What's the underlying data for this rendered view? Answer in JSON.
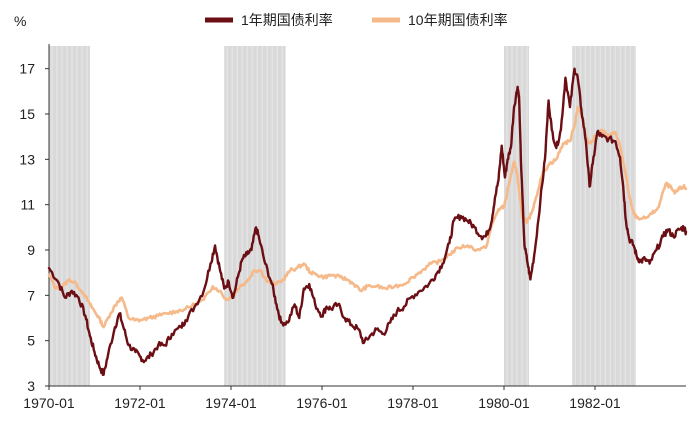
{
  "chart_data": {
    "type": "line",
    "title": "",
    "unit_label": "%",
    "xlabel": "",
    "ylabel": "%",
    "x_range": [
      1970.0,
      1984.0
    ],
    "ylim": [
      3,
      18
    ],
    "y_ticks": [
      3,
      5,
      7,
      9,
      11,
      13,
      15,
      17
    ],
    "x_ticks": [
      {
        "label": "1970-01",
        "value": 1970.0
      },
      {
        "label": "1972-01",
        "value": 1972.0
      },
      {
        "label": "1974-01",
        "value": 1974.0
      },
      {
        "label": "1976-01",
        "value": 1976.0
      },
      {
        "label": "1978-01",
        "value": 1978.0
      },
      {
        "label": "1980-01",
        "value": 1980.0
      },
      {
        "label": "1982-01",
        "value": 1982.0
      }
    ],
    "recession_shading": [
      [
        1970.0,
        1970.9
      ],
      [
        1973.85,
        1975.2
      ],
      [
        1980.0,
        1980.55
      ],
      [
        1981.5,
        1982.9
      ]
    ],
    "legend_position": "top-center",
    "series": [
      {
        "name": "1年期国债利率",
        "color": "#6b0f14",
        "points": [
          [
            1970.0,
            8.2
          ],
          [
            1970.2,
            7.6
          ],
          [
            1970.35,
            6.9
          ],
          [
            1970.5,
            7.2
          ],
          [
            1970.65,
            6.9
          ],
          [
            1970.8,
            6.1
          ],
          [
            1970.9,
            5.2
          ],
          [
            1971.0,
            4.5
          ],
          [
            1971.1,
            3.9
          ],
          [
            1971.2,
            3.5
          ],
          [
            1971.3,
            4.4
          ],
          [
            1971.45,
            5.6
          ],
          [
            1971.55,
            6.2
          ],
          [
            1971.65,
            5.5
          ],
          [
            1971.75,
            4.8
          ],
          [
            1971.9,
            4.5
          ],
          [
            1972.0,
            4.3
          ],
          [
            1972.1,
            4.1
          ],
          [
            1972.25,
            4.4
          ],
          [
            1972.4,
            4.8
          ],
          [
            1972.55,
            4.8
          ],
          [
            1972.7,
            5.3
          ],
          [
            1972.9,
            5.6
          ],
          [
            1973.0,
            5.9
          ],
          [
            1973.2,
            6.5
          ],
          [
            1973.4,
            7.2
          ],
          [
            1973.55,
            8.4
          ],
          [
            1973.65,
            9.2
          ],
          [
            1973.75,
            8.2
          ],
          [
            1973.85,
            7.3
          ],
          [
            1973.95,
            7.6
          ],
          [
            1974.05,
            6.9
          ],
          [
            1974.15,
            7.8
          ],
          [
            1974.25,
            8.6
          ],
          [
            1974.35,
            8.8
          ],
          [
            1974.45,
            9.0
          ],
          [
            1974.55,
            10.0
          ],
          [
            1974.62,
            9.5
          ],
          [
            1974.75,
            8.4
          ],
          [
            1974.9,
            7.5
          ],
          [
            1975.0,
            6.6
          ],
          [
            1975.1,
            5.8
          ],
          [
            1975.25,
            5.8
          ],
          [
            1975.4,
            6.6
          ],
          [
            1975.5,
            6.0
          ],
          [
            1975.6,
            7.3
          ],
          [
            1975.72,
            7.5
          ],
          [
            1975.85,
            6.6
          ],
          [
            1976.0,
            6.1
          ],
          [
            1976.1,
            6.5
          ],
          [
            1976.2,
            6.4
          ],
          [
            1976.35,
            6.6
          ],
          [
            1976.5,
            6.0
          ],
          [
            1976.65,
            5.7
          ],
          [
            1976.8,
            5.5
          ],
          [
            1976.92,
            4.9
          ],
          [
            1977.05,
            5.2
          ],
          [
            1977.2,
            5.5
          ],
          [
            1977.35,
            5.3
          ],
          [
            1977.5,
            5.8
          ],
          [
            1977.65,
            6.3
          ],
          [
            1977.8,
            6.5
          ],
          [
            1977.95,
            6.9
          ],
          [
            1978.15,
            7.2
          ],
          [
            1978.35,
            7.5
          ],
          [
            1978.5,
            7.9
          ],
          [
            1978.65,
            8.4
          ],
          [
            1978.8,
            9.3
          ],
          [
            1978.9,
            10.3
          ],
          [
            1979.05,
            10.5
          ],
          [
            1979.2,
            10.3
          ],
          [
            1979.35,
            10.0
          ],
          [
            1979.5,
            9.6
          ],
          [
            1979.6,
            9.6
          ],
          [
            1979.72,
            10.2
          ],
          [
            1979.8,
            11.3
          ],
          [
            1979.88,
            12.1
          ],
          [
            1979.95,
            13.6
          ],
          [
            1980.02,
            12.2
          ],
          [
            1980.08,
            13.0
          ],
          [
            1980.15,
            13.5
          ],
          [
            1980.22,
            15.3
          ],
          [
            1980.3,
            16.2
          ],
          [
            1980.33,
            15.8
          ],
          [
            1980.38,
            12.5
          ],
          [
            1980.45,
            9.2
          ],
          [
            1980.52,
            8.4
          ],
          [
            1980.58,
            7.7
          ],
          [
            1980.68,
            9.0
          ],
          [
            1980.8,
            11.2
          ],
          [
            1980.9,
            13.0
          ],
          [
            1980.98,
            15.6
          ],
          [
            1981.05,
            14.3
          ],
          [
            1981.15,
            13.5
          ],
          [
            1981.25,
            14.3
          ],
          [
            1981.35,
            16.6
          ],
          [
            1981.45,
            15.3
          ],
          [
            1981.55,
            17.0
          ],
          [
            1981.62,
            16.6
          ],
          [
            1981.7,
            15.2
          ],
          [
            1981.8,
            13.8
          ],
          [
            1981.88,
            11.8
          ],
          [
            1981.95,
            12.8
          ],
          [
            1982.05,
            14.2
          ],
          [
            1982.15,
            14.0
          ],
          [
            1982.3,
            13.9
          ],
          [
            1982.45,
            13.8
          ],
          [
            1982.55,
            13.1
          ],
          [
            1982.62,
            11.8
          ],
          [
            1982.68,
            10.3
          ],
          [
            1982.75,
            9.5
          ],
          [
            1982.85,
            9.2
          ],
          [
            1982.92,
            8.7
          ],
          [
            1983.0,
            8.5
          ],
          [
            1983.1,
            8.6
          ],
          [
            1983.2,
            8.4
          ],
          [
            1983.35,
            9.0
          ],
          [
            1983.5,
            9.6
          ],
          [
            1983.6,
            9.9
          ],
          [
            1983.72,
            9.6
          ],
          [
            1983.85,
            9.9
          ],
          [
            1983.95,
            10.0
          ],
          [
            1984.0,
            9.8
          ]
        ]
      },
      {
        "name": "10年期国债利率",
        "color": "#f5b98a",
        "points": [
          [
            1970.0,
            7.9
          ],
          [
            1970.15,
            7.3
          ],
          [
            1970.3,
            7.4
          ],
          [
            1970.45,
            7.7
          ],
          [
            1970.6,
            7.5
          ],
          [
            1970.75,
            7.1
          ],
          [
            1970.9,
            6.6
          ],
          [
            1971.0,
            6.3
          ],
          [
            1971.1,
            6.0
          ],
          [
            1971.2,
            5.6
          ],
          [
            1971.35,
            6.2
          ],
          [
            1971.5,
            6.7
          ],
          [
            1971.6,
            6.9
          ],
          [
            1971.75,
            6.0
          ],
          [
            1971.9,
            5.9
          ],
          [
            1972.0,
            5.9
          ],
          [
            1972.2,
            6.0
          ],
          [
            1972.4,
            6.1
          ],
          [
            1972.6,
            6.2
          ],
          [
            1972.8,
            6.3
          ],
          [
            1973.0,
            6.4
          ],
          [
            1973.2,
            6.6
          ],
          [
            1973.4,
            6.8
          ],
          [
            1973.6,
            7.4
          ],
          [
            1973.75,
            7.2
          ],
          [
            1973.9,
            6.8
          ],
          [
            1974.05,
            7.0
          ],
          [
            1974.2,
            7.4
          ],
          [
            1974.35,
            7.6
          ],
          [
            1974.5,
            8.1
          ],
          [
            1974.65,
            8.1
          ],
          [
            1974.8,
            7.6
          ],
          [
            1975.0,
            7.5
          ],
          [
            1975.15,
            7.7
          ],
          [
            1975.3,
            8.1
          ],
          [
            1975.45,
            8.2
          ],
          [
            1975.6,
            8.4
          ],
          [
            1975.75,
            8.0
          ],
          [
            1975.9,
            7.9
          ],
          [
            1976.05,
            7.8
          ],
          [
            1976.2,
            7.9
          ],
          [
            1976.4,
            7.8
          ],
          [
            1976.55,
            7.7
          ],
          [
            1976.7,
            7.5
          ],
          [
            1976.85,
            7.2
          ],
          [
            1977.0,
            7.4
          ],
          [
            1977.2,
            7.4
          ],
          [
            1977.4,
            7.3
          ],
          [
            1977.6,
            7.4
          ],
          [
            1977.8,
            7.5
          ],
          [
            1978.0,
            7.8
          ],
          [
            1978.2,
            8.1
          ],
          [
            1978.4,
            8.4
          ],
          [
            1978.6,
            8.5
          ],
          [
            1978.8,
            8.8
          ],
          [
            1979.0,
            9.1
          ],
          [
            1979.2,
            9.2
          ],
          [
            1979.4,
            9.0
          ],
          [
            1979.6,
            9.1
          ],
          [
            1979.75,
            10.2
          ],
          [
            1979.88,
            10.8
          ],
          [
            1980.0,
            10.9
          ],
          [
            1980.12,
            12.0
          ],
          [
            1980.22,
            12.9
          ],
          [
            1980.3,
            12.2
          ],
          [
            1980.4,
            10.5
          ],
          [
            1980.5,
            10.2
          ],
          [
            1980.6,
            10.6
          ],
          [
            1980.7,
            11.3
          ],
          [
            1980.85,
            12.4
          ],
          [
            1981.0,
            12.8
          ],
          [
            1981.15,
            13.0
          ],
          [
            1981.3,
            13.7
          ],
          [
            1981.45,
            13.8
          ],
          [
            1981.55,
            14.5
          ],
          [
            1981.62,
            15.3
          ],
          [
            1981.7,
            15.0
          ],
          [
            1981.8,
            14.0
          ],
          [
            1981.9,
            13.7
          ],
          [
            1982.0,
            14.0
          ],
          [
            1982.15,
            14.3
          ],
          [
            1982.3,
            14.0
          ],
          [
            1982.45,
            14.2
          ],
          [
            1982.55,
            13.6
          ],
          [
            1982.65,
            12.6
          ],
          [
            1982.75,
            11.4
          ],
          [
            1982.85,
            10.6
          ],
          [
            1982.95,
            10.4
          ],
          [
            1983.1,
            10.4
          ],
          [
            1983.25,
            10.6
          ],
          [
            1983.4,
            10.9
          ],
          [
            1983.55,
            11.9
          ],
          [
            1983.65,
            11.8
          ],
          [
            1983.75,
            11.5
          ],
          [
            1983.85,
            11.7
          ],
          [
            1983.95,
            11.8
          ],
          [
            1984.0,
            11.7
          ]
        ]
      }
    ]
  }
}
